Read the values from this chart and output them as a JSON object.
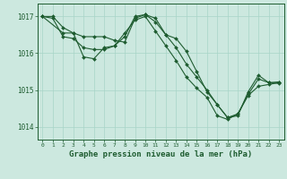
{
  "title": "Graphe pression niveau de la mer (hPa)",
  "background_color": "#cce8df",
  "grid_color": "#a8d4c8",
  "line_color": "#1e5c30",
  "xlim": [
    -0.5,
    23.5
  ],
  "ylim": [
    1013.65,
    1017.35
  ],
  "yticks": [
    1014,
    1015,
    1016,
    1017
  ],
  "xticks": [
    0,
    1,
    2,
    3,
    4,
    5,
    6,
    7,
    8,
    9,
    10,
    11,
    12,
    13,
    14,
    15,
    16,
    17,
    18,
    19,
    20,
    21,
    22,
    23
  ],
  "series": [
    {
      "x": [
        0,
        1,
        2,
        3,
        4,
        5,
        6,
        7,
        8,
        9,
        10,
        11,
        12,
        13,
        14,
        15,
        16,
        17,
        18,
        19,
        20,
        21,
        22,
        23
      ],
      "y": [
        1017.0,
        1017.0,
        1016.7,
        1016.55,
        1015.9,
        1015.85,
        1016.15,
        1016.2,
        1016.55,
        1016.9,
        1017.0,
        1016.6,
        1016.2,
        1015.8,
        1015.35,
        1015.05,
        1014.8,
        1014.3,
        1014.2,
        1014.35,
        1014.85,
        1015.1,
        1015.15,
        1015.2
      ]
    },
    {
      "x": [
        0,
        1,
        2,
        3,
        4,
        5,
        6,
        7,
        8,
        9,
        10,
        11,
        12,
        13,
        14,
        15,
        16,
        17,
        18,
        19,
        20,
        21,
        22,
        23
      ],
      "y": [
        1017.0,
        1016.95,
        1016.45,
        1016.4,
        1016.15,
        1016.1,
        1016.1,
        1016.2,
        1016.45,
        1017.0,
        1017.05,
        1016.85,
        1016.5,
        1016.15,
        1015.7,
        1015.35,
        1015.0,
        1014.6,
        1014.25,
        1014.35,
        1014.88,
        1015.3,
        1015.2,
        1015.18
      ]
    },
    {
      "x": [
        0,
        2,
        3,
        4,
        5,
        6,
        7,
        8,
        9,
        10,
        11,
        12,
        13,
        14,
        15,
        16,
        17,
        18,
        19,
        20,
        21,
        22,
        23
      ],
      "y": [
        1017.0,
        1016.55,
        1016.55,
        1016.45,
        1016.45,
        1016.45,
        1016.35,
        1016.3,
        1016.95,
        1017.05,
        1016.95,
        1016.5,
        1016.4,
        1016.05,
        1015.5,
        1014.95,
        1014.6,
        1014.25,
        1014.3,
        1014.95,
        1015.4,
        1015.2,
        1015.22
      ]
    }
  ]
}
